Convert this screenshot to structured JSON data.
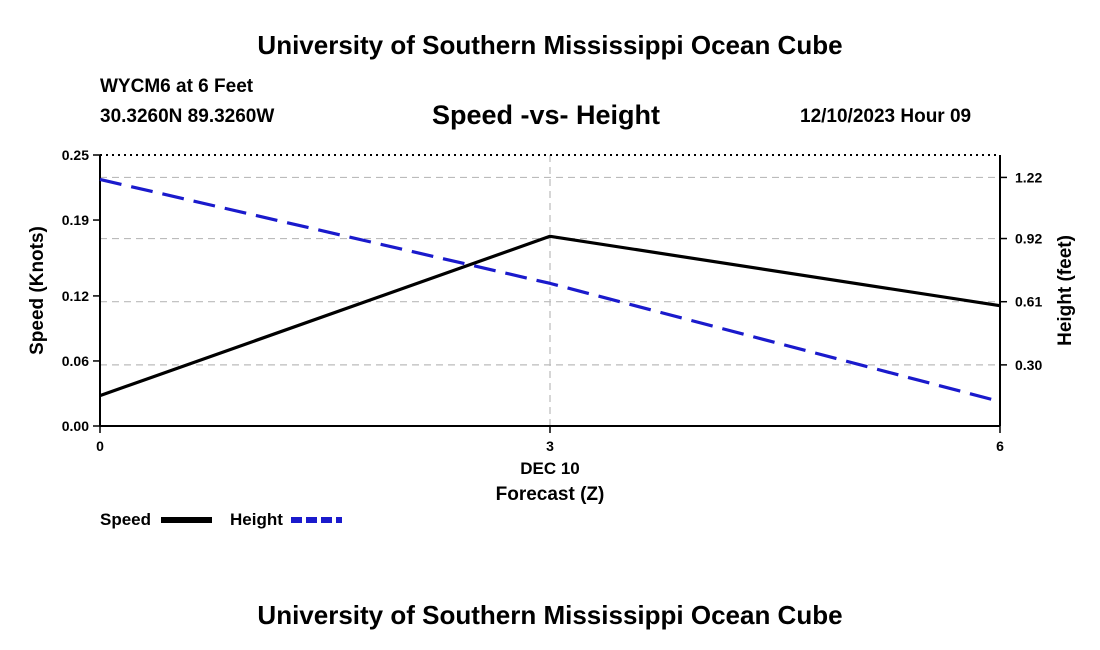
{
  "header": {
    "title": "University of Southern Mississippi Ocean Cube",
    "station": "WYCM6 at 6 Feet",
    "coords": "30.3260N  89.3260W",
    "chart_title": "Speed -vs- Height",
    "datetime": "12/10/2023 Hour 09"
  },
  "footer": {
    "title": "University of Southern Mississippi Ocean Cube"
  },
  "colors": {
    "speed": "#000000",
    "height": "#1a1acc",
    "grid": "#bbbbbb"
  },
  "chart_data": {
    "type": "line",
    "title": "Speed -vs- Height",
    "x": [
      0,
      3,
      6
    ],
    "x_ticks": [
      "0",
      "3",
      "6"
    ],
    "xlim": [
      0,
      6
    ],
    "date_label": "DEC 10",
    "xlabel": "Forecast (Z)",
    "ylabel_left": "Speed (Knots)",
    "ylabel_right": "Height (feet)",
    "ylim_left": [
      0,
      0.25
    ],
    "left_ticks": [
      0.0,
      0.06,
      0.12,
      0.19,
      0.25
    ],
    "left_tick_labels": [
      "0.00",
      "0.06",
      "0.12",
      "0.19",
      "0.25"
    ],
    "ylim_right": [
      0.0,
      1.33
    ],
    "right_ticks": [
      0.3,
      0.61,
      0.92,
      1.22
    ],
    "right_tick_labels": [
      "0.30",
      "0.61",
      "0.92",
      "1.22"
    ],
    "series": [
      {
        "name": "Speed",
        "axis": "left",
        "style": "solid",
        "values": [
          0.028,
          0.175,
          0.111
        ]
      },
      {
        "name": "Height",
        "axis": "right",
        "style": "dashed",
        "values": [
          1.21,
          0.7,
          0.12
        ]
      }
    ],
    "legend": [
      "Speed",
      "Height"
    ],
    "legend_position": "bottom-left"
  }
}
